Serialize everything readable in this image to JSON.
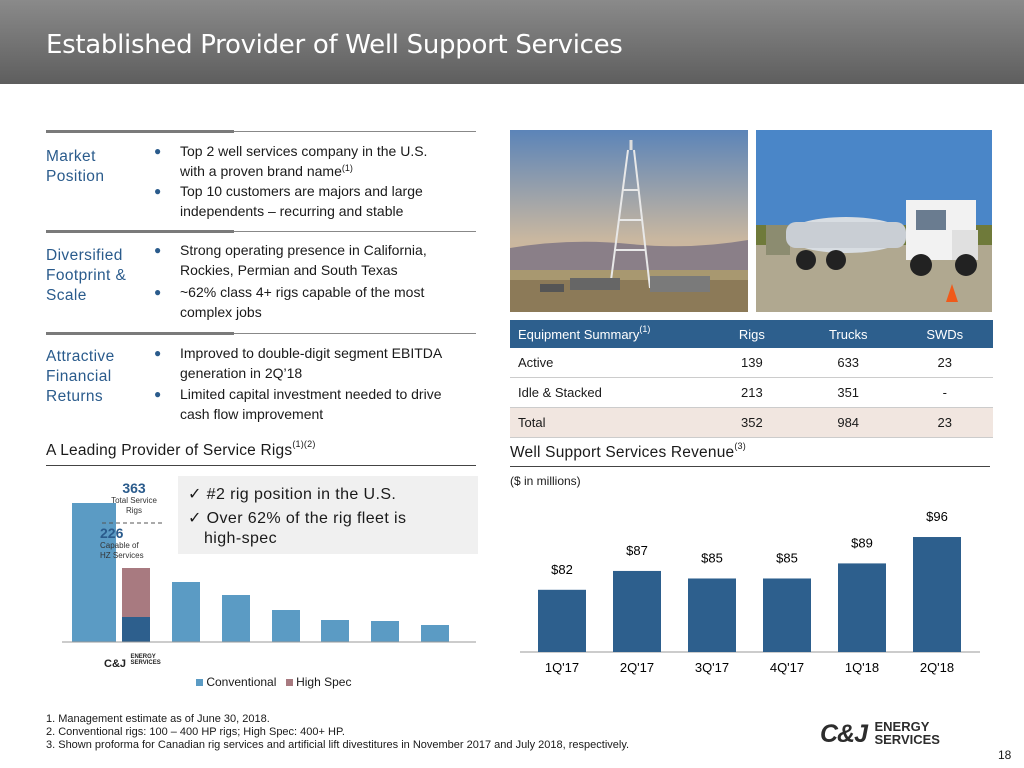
{
  "title": "Established Provider of Well Support Services",
  "sections": [
    {
      "label_lines": [
        "Market",
        "Position"
      ],
      "bullets": [
        [
          "Top 2 well services company in the U.S.",
          "with a proven brand name"
        ],
        [
          "Top 10 customers are majors and large",
          "independents – recurring and stable"
        ]
      ],
      "sup": "(1)"
    },
    {
      "label_lines": [
        "Diversified",
        "Footprint &",
        "Scale"
      ],
      "bullets": [
        [
          "Strong operating presence in California,",
          "Rockies, Permian and South Texas"
        ],
        [
          "~62% class 4+ rigs capable of the most",
          "complex jobs"
        ]
      ]
    },
    {
      "label_lines": [
        "Attractive",
        "Financial",
        "Returns"
      ],
      "bullets": [
        [
          "Improved to double-digit segment EBITDA",
          "generation in 2Q’18"
        ],
        [
          "Limited capital investment needed to drive",
          "cash flow improvement"
        ]
      ]
    }
  ],
  "equipment": {
    "header": {
      "title": "Equipment Summary",
      "sup": "(1)",
      "cols": [
        "Rigs",
        "Trucks",
        "SWDs"
      ]
    },
    "rows": [
      {
        "name": "Active",
        "values": [
          "139",
          "633",
          "23"
        ]
      },
      {
        "name": "Idle & Stacked",
        "values": [
          "213",
          "351",
          "-"
        ]
      },
      {
        "name": "Total",
        "values": [
          "352",
          "984",
          "23"
        ]
      }
    ]
  },
  "rig_chart": {
    "heading": "A Leading Provider of Service Rigs",
    "heading_sup": "(1)(2)",
    "callout_total": {
      "value": "363",
      "label_lines": [
        "Total Service",
        "Rigs"
      ]
    },
    "callout_capable": {
      "value": "226",
      "label_lines": [
        "Capable of",
        "HZ Services"
      ]
    },
    "checks": [
      "#2 rig position in the U.S.",
      "Over 62% of the rig fleet is",
      "high-spec"
    ],
    "check_mark": "✓",
    "company_label_lines": [
      "C&J",
      "ENERGY",
      "SERVICES"
    ],
    "legend": [
      "Conventional",
      "High Spec"
    ],
    "colors": {
      "conventional": "#5b9bc4",
      "high_spec": "#a87a80",
      "cj_base": "#2d5f8d"
    }
  },
  "chart_data": {
    "type": "bar",
    "title": "Well Support Services Revenue",
    "title_sup": "(3)",
    "subtitle": "($ in millions)",
    "categories": [
      "1Q'17",
      "2Q'17",
      "3Q'17",
      "4Q'17",
      "1Q'18",
      "2Q'18"
    ],
    "values": [
      82,
      87,
      85,
      85,
      89,
      96
    ],
    "labels": [
      "$82",
      "$87",
      "$85",
      "$85",
      "$89",
      "$96"
    ],
    "color": "#2d5f8d"
  },
  "footnotes": [
    "1. Management estimate as of June 30, 2018.",
    "2. Conventional rigs: 100 – 400 HP rigs; High Spec: 400+ HP.",
    "3. Shown proforma for Canadian rig services and artificial lift divestitures in November 2017 and July 2018, respectively."
  ],
  "logo": {
    "mark": "C&J",
    "line1": "ENERGY",
    "line2": "SERVICES"
  },
  "page_number": "18"
}
